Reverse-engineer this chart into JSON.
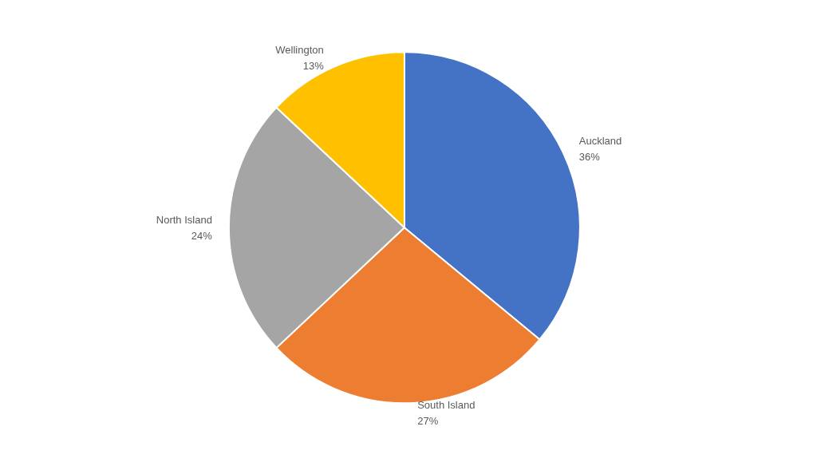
{
  "chart_data": {
    "type": "pie",
    "categories": [
      "Auckland",
      "South Island",
      "North Island",
      "Wellington"
    ],
    "values": [
      36,
      27,
      24,
      13
    ],
    "value_labels": [
      "36%",
      "27%",
      "24%",
      "13%"
    ],
    "colors": [
      "#4472c4",
      "#ed7d31",
      "#a5a5a5",
      "#ffc000"
    ],
    "legend": false
  }
}
